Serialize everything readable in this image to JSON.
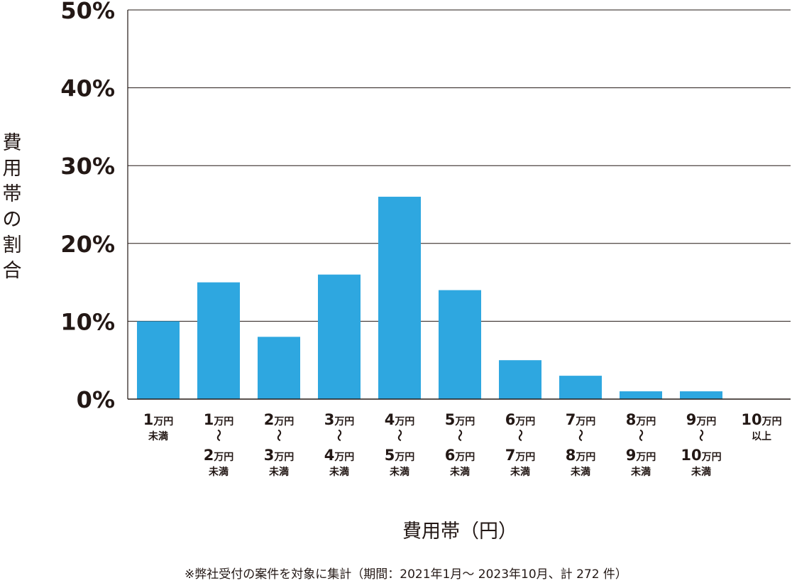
{
  "chart_data": {
    "type": "bar",
    "ylabel": "費用帯の割合",
    "xlabel": "費用帯（円）",
    "note": "※弊社受付の案件を対象に集計（期間：2021年1月～ 2023年10月、計 272 件）",
    "ylim": [
      0,
      50
    ],
    "yticks": [
      "0%",
      "10%",
      "20%",
      "30%",
      "40%",
      "50%"
    ],
    "ytick_values": [
      0,
      10,
      20,
      30,
      40,
      50
    ],
    "grid": true,
    "colors": {
      "bar": "#2EA7E0",
      "grid": "#231815",
      "text": "#231815"
    },
    "categories": [
      {
        "from": "1",
        "from_unit": "万円",
        "sub": "未満"
      },
      {
        "from": "1",
        "from_unit": "万円",
        "tilde": "～",
        "to": "2",
        "to_unit": "万円",
        "sub": "未満"
      },
      {
        "from": "2",
        "from_unit": "万円",
        "tilde": "～",
        "to": "3",
        "to_unit": "万円",
        "sub": "未満"
      },
      {
        "from": "3",
        "from_unit": "万円",
        "tilde": "～",
        "to": "4",
        "to_unit": "万円",
        "sub": "未満"
      },
      {
        "from": "4",
        "from_unit": "万円",
        "tilde": "～",
        "to": "5",
        "to_unit": "万円",
        "sub": "未満"
      },
      {
        "from": "5",
        "from_unit": "万円",
        "tilde": "～",
        "to": "6",
        "to_unit": "万円",
        "sub": "未満"
      },
      {
        "from": "6",
        "from_unit": "万円",
        "tilde": "～",
        "to": "7",
        "to_unit": "万円",
        "sub": "未満"
      },
      {
        "from": "7",
        "from_unit": "万円",
        "tilde": "～",
        "to": "8",
        "to_unit": "万円",
        "sub": "未満"
      },
      {
        "from": "8",
        "from_unit": "万円",
        "tilde": "～",
        "to": "9",
        "to_unit": "万円",
        "sub": "未満"
      },
      {
        "from": "9",
        "from_unit": "万円",
        "tilde": "～",
        "to": "10",
        "to_unit": "万円",
        "sub": "未満"
      },
      {
        "from": "10",
        "from_unit": "万円",
        "sub": "以上"
      }
    ],
    "values": [
      10,
      15,
      8,
      16,
      26,
      14,
      5,
      3,
      1,
      1,
      0
    ]
  }
}
